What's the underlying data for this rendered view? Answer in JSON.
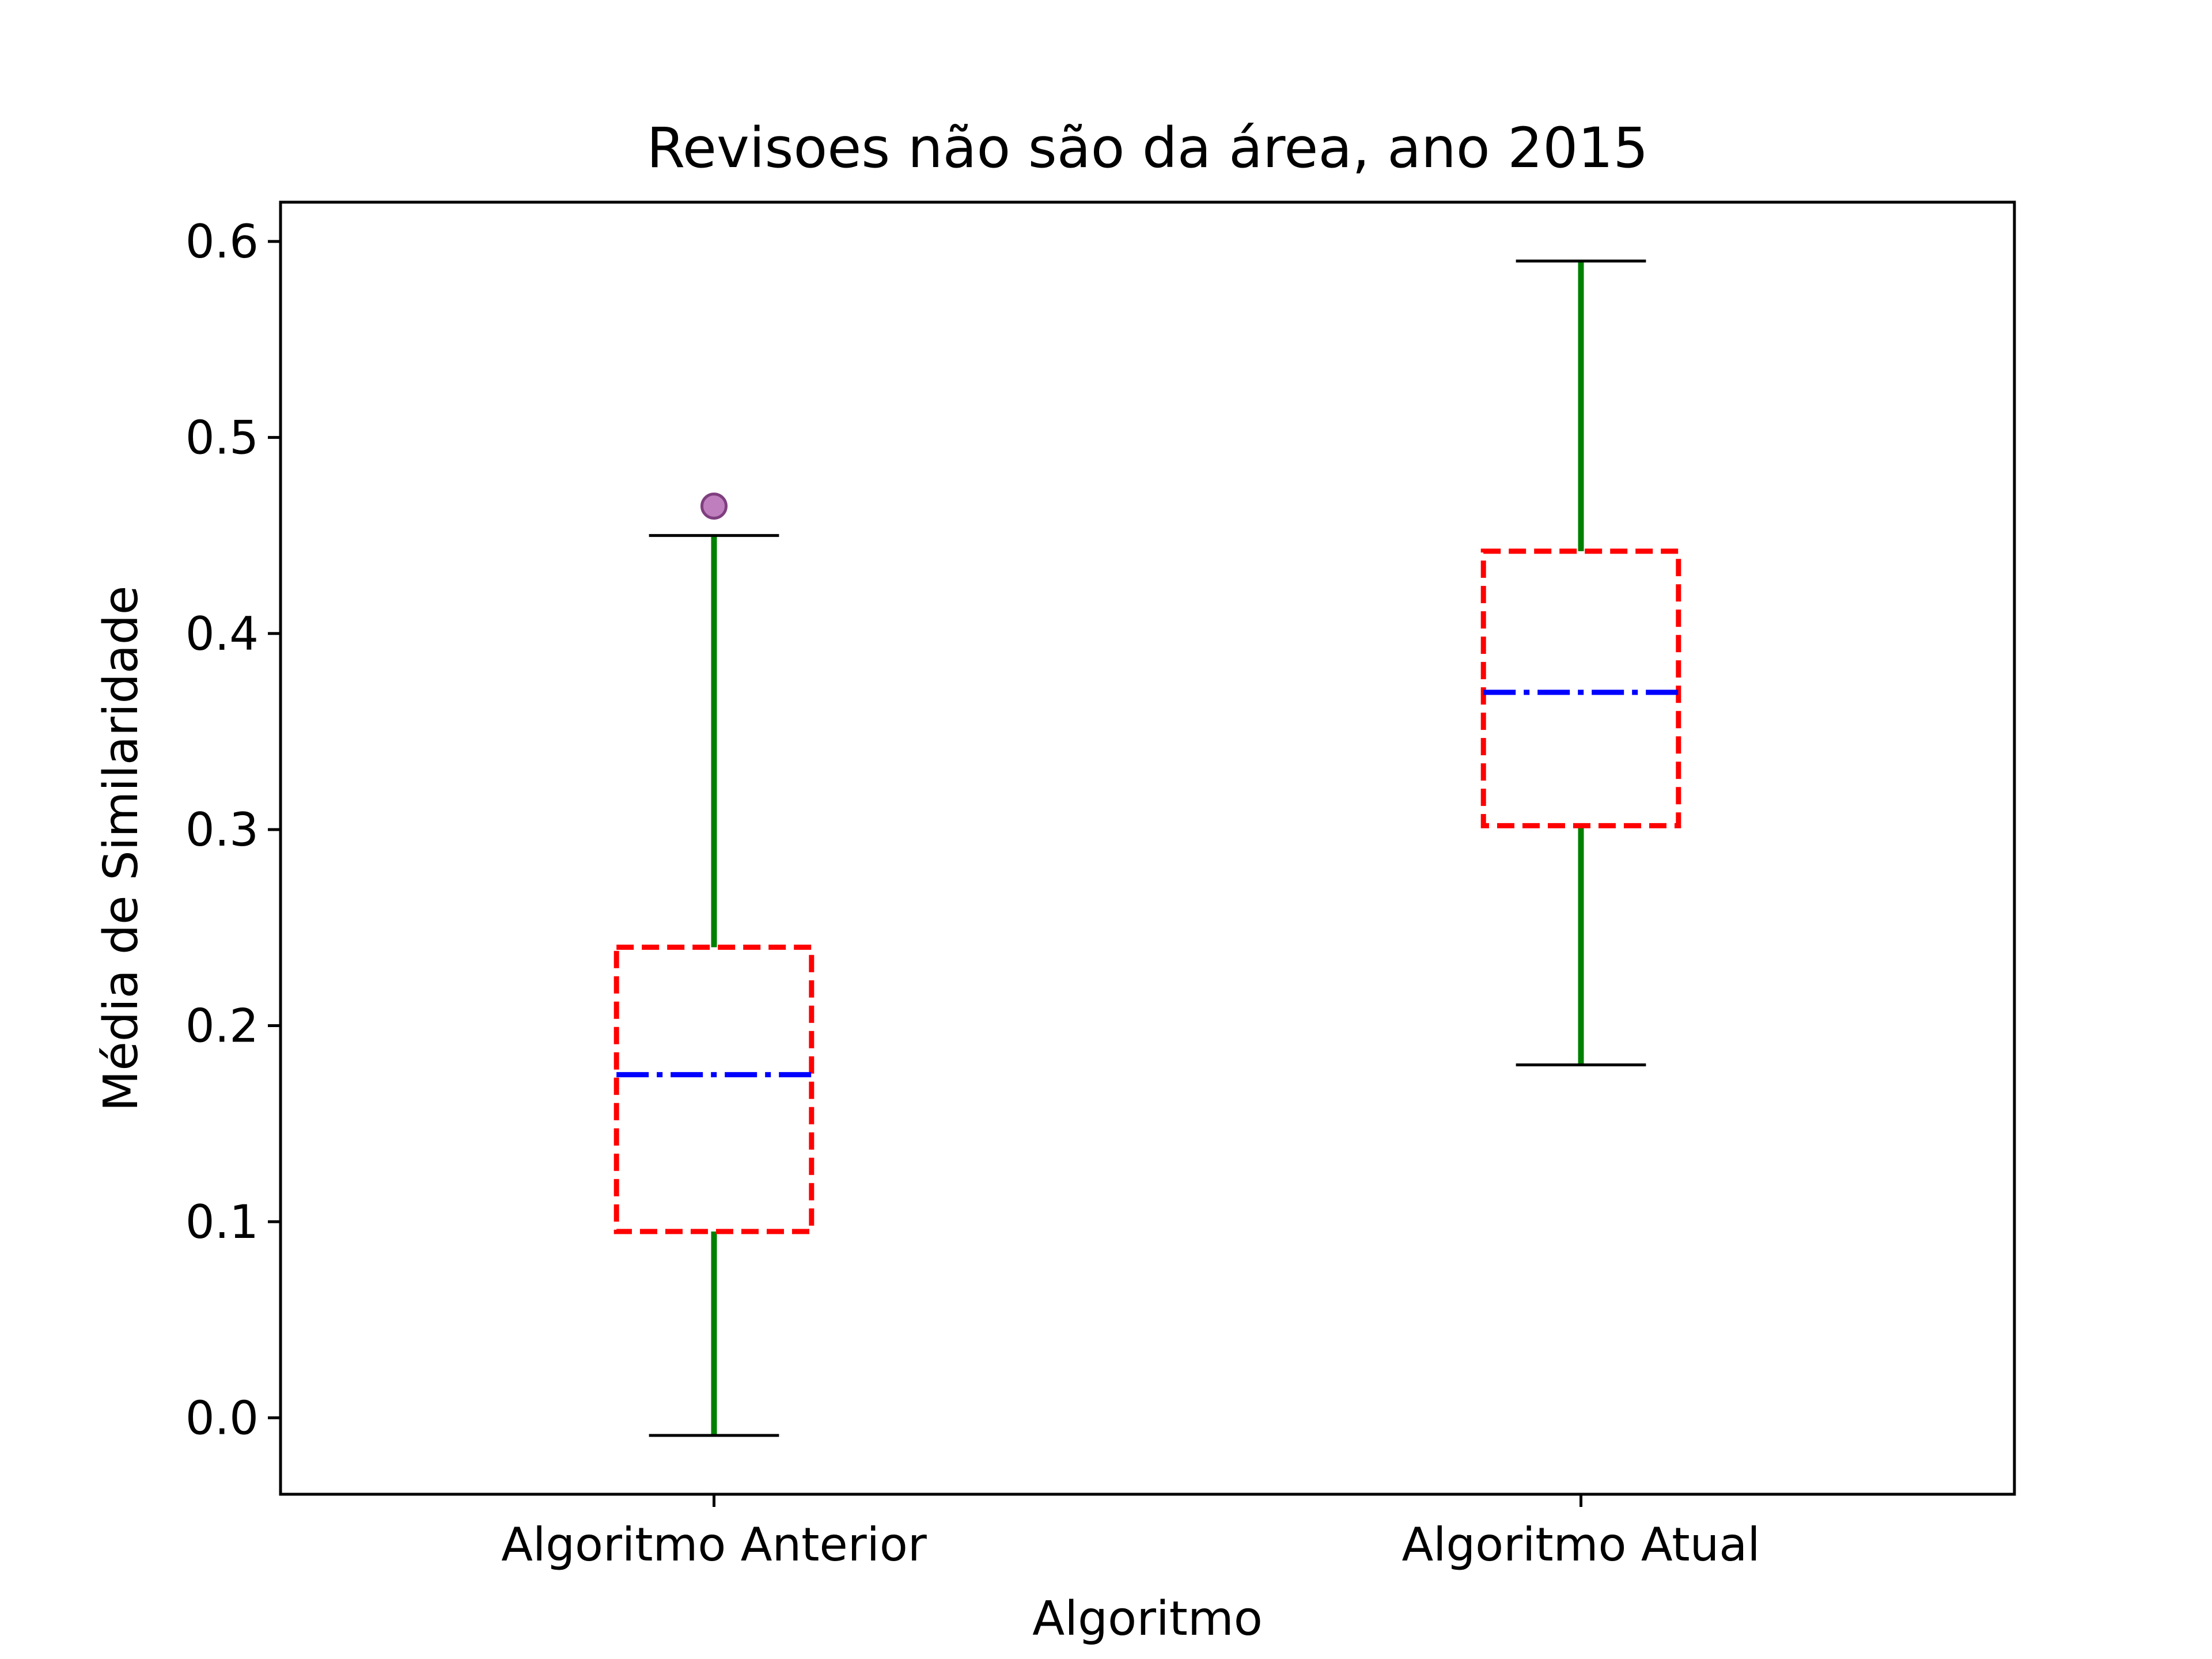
{
  "chart_data": {
    "type": "box",
    "title": "Revisoes não são da área, ano 2015",
    "xlabel": "Algoritmo",
    "ylabel": "Média de Similaridade",
    "ylim": [
      -0.039,
      0.62
    ],
    "yticks": [
      0.0,
      0.1,
      0.2,
      0.3,
      0.4,
      0.5,
      0.6
    ],
    "ytick_labels": [
      "0.0",
      "0.1",
      "0.2",
      "0.3",
      "0.4",
      "0.5",
      "0.6"
    ],
    "categories": [
      "Algoritmo Anterior",
      "Algoritmo Atual"
    ],
    "boxes": [
      {
        "category": "Algoritmo Anterior",
        "whisker_low": -0.009,
        "q1": 0.095,
        "median": 0.175,
        "q3": 0.24,
        "whisker_high": 0.45,
        "outliers": [
          0.465
        ]
      },
      {
        "category": "Algoritmo Atual",
        "whisker_low": 0.18,
        "q1": 0.302,
        "median": 0.37,
        "q3": 0.442,
        "whisker_high": 0.59,
        "outliers": []
      }
    ],
    "grid": false,
    "colors": {
      "box": "#ff0000",
      "median": "#0000ff",
      "whisker": "#008000",
      "cap": "#000000",
      "outlier_fill": "#bf7fbf",
      "outlier_edge": "#7f3f7f",
      "axes": "#000000"
    }
  }
}
